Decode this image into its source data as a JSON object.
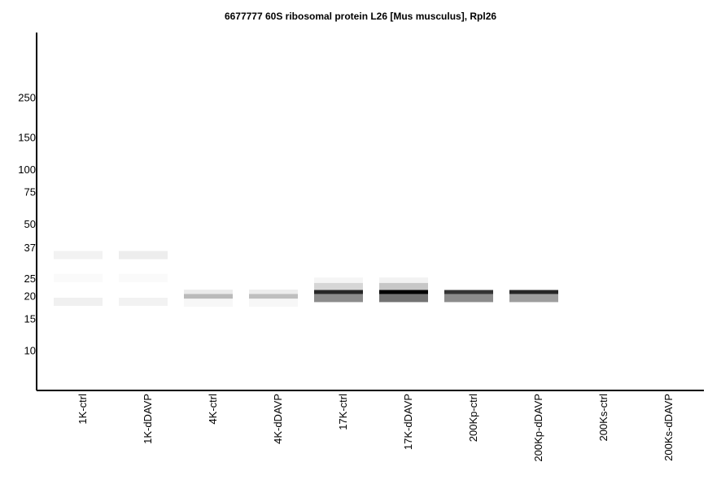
{
  "chart_data": {
    "type": "gel",
    "title": "6677777 60S ribosomal protein L26 [Mus musculus], Rpl26",
    "y_scale": "log",
    "y_unit": "kDa",
    "y_ticks": [
      250,
      150,
      100,
      75,
      50,
      37,
      25,
      20,
      15,
      10
    ],
    "lanes": [
      {
        "label": "1K-ctrl",
        "bands": [
          {
            "mw": 33.5,
            "intensity": 0.05
          },
          {
            "mw": 25.0,
            "intensity": 0.02
          },
          {
            "mw": 18.5,
            "intensity": 0.06
          }
        ]
      },
      {
        "label": "1K-dDAVP",
        "bands": [
          {
            "mw": 33.5,
            "intensity": 0.07
          },
          {
            "mw": 25.0,
            "intensity": 0.02
          },
          {
            "mw": 18.5,
            "intensity": 0.05
          }
        ]
      },
      {
        "label": "4K-ctrl",
        "bands": [
          {
            "mw": 20.5,
            "intensity": 0.08
          },
          {
            "mw": 19.4,
            "intensity": 0.27
          },
          {
            "mw": 18.3,
            "intensity": 0.03
          }
        ]
      },
      {
        "label": "4K-dDAVP",
        "bands": [
          {
            "mw": 20.5,
            "intensity": 0.07
          },
          {
            "mw": 19.4,
            "intensity": 0.25
          },
          {
            "mw": 18.3,
            "intensity": 0.03
          }
        ]
      },
      {
        "label": "17K-ctrl",
        "bands": [
          {
            "mw": 23.9,
            "intensity": 0.04
          },
          {
            "mw": 22.3,
            "intensity": 0.16
          },
          {
            "mw": 20.4,
            "intensity": 0.85
          },
          {
            "mw": 19.4,
            "intensity": 0.45
          }
        ]
      },
      {
        "label": "17K-dDAVP",
        "bands": [
          {
            "mw": 23.9,
            "intensity": 0.05
          },
          {
            "mw": 22.3,
            "intensity": 0.22
          },
          {
            "mw": 20.4,
            "intensity": 1.0
          },
          {
            "mw": 19.4,
            "intensity": 0.55
          }
        ]
      },
      {
        "label": "200Kp-ctrl",
        "bands": [
          {
            "mw": 20.4,
            "intensity": 0.8
          },
          {
            "mw": 19.4,
            "intensity": 0.45
          }
        ]
      },
      {
        "label": "200Kp-dDAVP",
        "bands": [
          {
            "mw": 20.4,
            "intensity": 0.85
          },
          {
            "mw": 19.4,
            "intensity": 0.38
          }
        ]
      },
      {
        "label": "200Ks-ctrl",
        "bands": []
      },
      {
        "label": "200Ks-dDAVP",
        "bands": []
      }
    ]
  }
}
